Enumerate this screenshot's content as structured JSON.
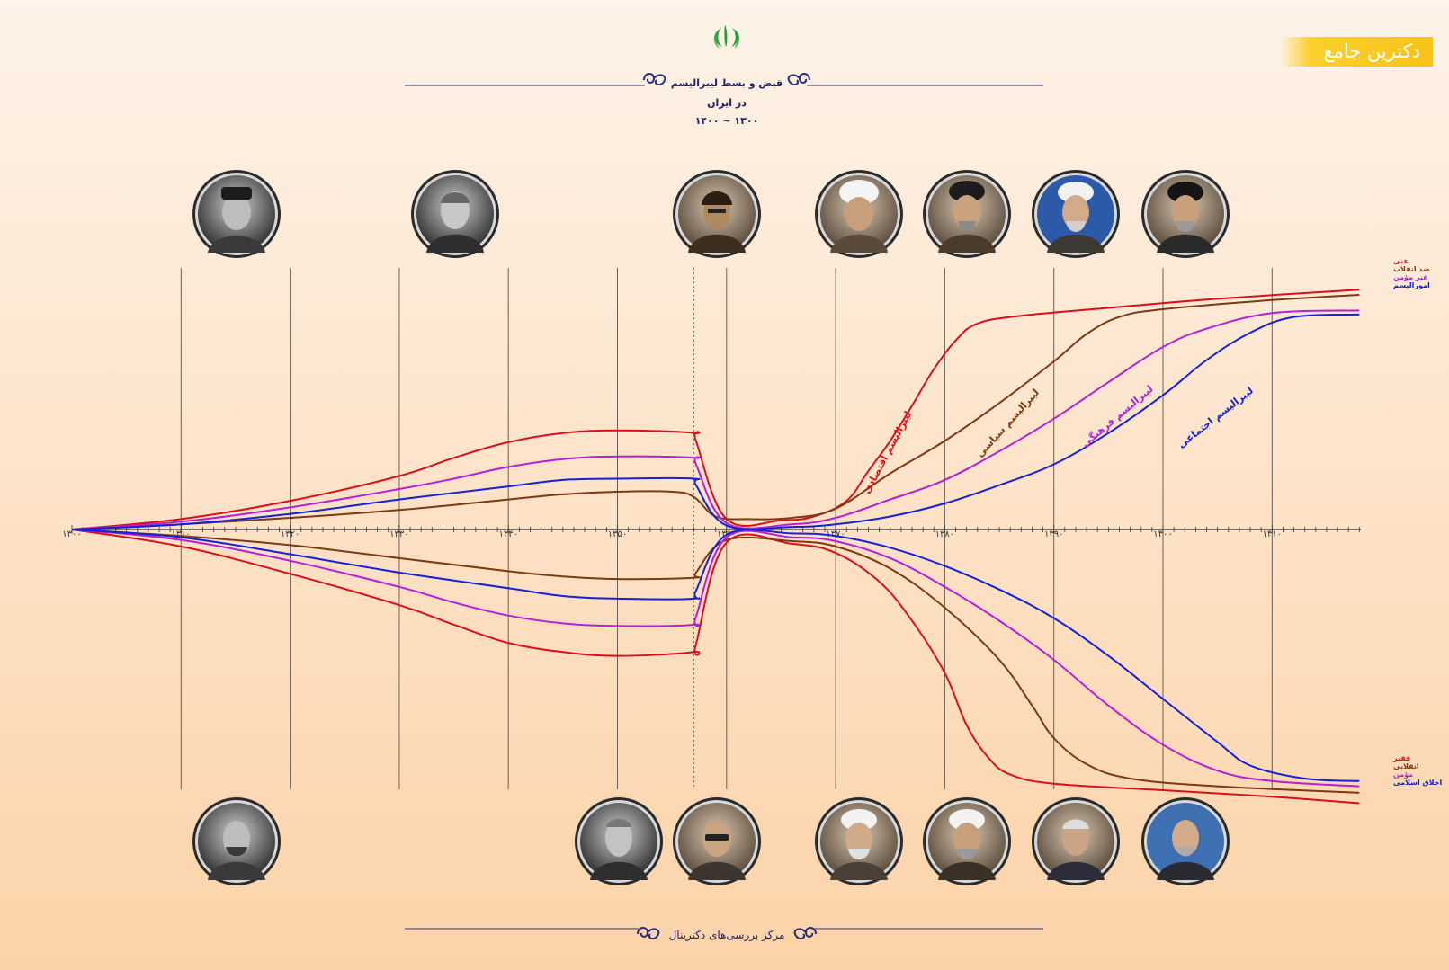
{
  "brand": {
    "label": "دکترین جامع"
  },
  "header": {
    "title": "قبض و بسط لیبرالیسم",
    "subtitle": "در ایران",
    "range": "۱۴۰۰ ~ ۱۳۰۰"
  },
  "footer": {
    "text": "مرکز بررسی‌های دکترینال"
  },
  "colors": {
    "red": "#d7111a",
    "brown": "#7b3a10",
    "magenta": "#b51fd8",
    "blue": "#1421d6",
    "title": "#1f2060",
    "emblem": "#21a33a"
  },
  "chart_data": {
    "type": "line",
    "title": "قبض و بسط لیبرالیسم",
    "xlabel": "",
    "ylabel": "",
    "xlim": [
      1300,
      1418
    ],
    "ylim": [
      -100,
      100
    ],
    "x_ticks": [
      1300,
      1310,
      1320,
      1330,
      1340,
      1350,
      1360,
      1370,
      1380,
      1390,
      1400,
      1410
    ],
    "x_tick_labels": [
      "۱۳۰۰",
      "۱۳۱۰",
      "۱۳۲۰",
      "۱۳۳۰",
      "۱۳۴۰",
      "۱۳۵۰",
      "۱۳۶۰",
      "۱۳۷۰",
      "۱۳۸۰",
      "۱۳۹۰",
      "۱۴۰۰",
      "۱۴۱۰"
    ],
    "grid_x": true,
    "revolution_marker_x": 1357,
    "upper_series": [
      {
        "name": "غنی",
        "curve_label": "لیبرالیسم اقتصادی",
        "color": "red",
        "label_at": [
          1375,
          58,
          -62
        ],
        "points": [
          [
            1300,
            0
          ],
          [
            1310,
            8
          ],
          [
            1320,
            22
          ],
          [
            1330,
            41
          ],
          [
            1335,
            55
          ],
          [
            1340,
            67
          ],
          [
            1345,
            74
          ],
          [
            1350,
            76
          ],
          [
            1357,
            74
          ],
          [
            1357.2,
            68
          ],
          [
            1360,
            8
          ],
          [
            1365,
            7
          ],
          [
            1368,
            10
          ],
          [
            1371,
            22
          ],
          [
            1373,
            45
          ],
          [
            1375,
            68
          ],
          [
            1377,
            95
          ],
          [
            1379,
            123
          ],
          [
            1381,
            145
          ],
          [
            1383,
            158
          ],
          [
            1387,
            164
          ],
          [
            1395,
            170
          ],
          [
            1405,
            177
          ],
          [
            1418,
            184
          ]
        ]
      },
      {
        "name": "ضد انقلاب",
        "curve_label": "لیبرالیسم سیاسی",
        "color": "brown",
        "label_at": [
          1386,
          80,
          -48
        ],
        "points": [
          [
            1300,
            0
          ],
          [
            1310,
            4
          ],
          [
            1320,
            9
          ],
          [
            1330,
            15
          ],
          [
            1340,
            23
          ],
          [
            1345,
            27
          ],
          [
            1350,
            29
          ],
          [
            1355,
            29
          ],
          [
            1357,
            25
          ],
          [
            1359,
            10
          ],
          [
            1362,
            8
          ],
          [
            1366,
            9
          ],
          [
            1370,
            16
          ],
          [
            1375,
            43
          ],
          [
            1380,
            68
          ],
          [
            1385,
            97
          ],
          [
            1390,
            129
          ],
          [
            1393,
            150
          ],
          [
            1396,
            163
          ],
          [
            1400,
            169
          ],
          [
            1410,
            176
          ],
          [
            1418,
            180
          ]
        ]
      },
      {
        "name": "غیر مؤمن",
        "curve_label": "لیبرالیسم فرهنگی",
        "color": "magenta",
        "label_at": [
          1396,
          85,
          -40
        ],
        "points": [
          [
            1300,
            0
          ],
          [
            1310,
            6
          ],
          [
            1320,
            17
          ],
          [
            1330,
            31
          ],
          [
            1335,
            39
          ],
          [
            1340,
            48
          ],
          [
            1345,
            54
          ],
          [
            1350,
            56
          ],
          [
            1357,
            55
          ],
          [
            1357.2,
            50
          ],
          [
            1360,
            5
          ],
          [
            1366,
            4
          ],
          [
            1370,
            9
          ],
          [
            1375,
            23
          ],
          [
            1380,
            38
          ],
          [
            1385,
            60
          ],
          [
            1390,
            85
          ],
          [
            1395,
            113
          ],
          [
            1400,
            140
          ],
          [
            1404,
            154
          ],
          [
            1410,
            166
          ],
          [
            1418,
            168
          ]
        ]
      },
      {
        "name": "امورالیسم",
        "curve_label": "لیبرالیسم اجتماعی",
        "color": "blue",
        "label_at": [
          1405,
          84,
          -38
        ],
        "points": [
          [
            1300,
            0
          ],
          [
            1310,
            4
          ],
          [
            1320,
            12
          ],
          [
            1330,
            23
          ],
          [
            1340,
            33
          ],
          [
            1345,
            38
          ],
          [
            1350,
            39
          ],
          [
            1357,
            39
          ],
          [
            1357.2,
            34
          ],
          [
            1360,
            3
          ],
          [
            1366,
            2
          ],
          [
            1370,
            4
          ],
          [
            1375,
            10
          ],
          [
            1380,
            20
          ],
          [
            1385,
            34
          ],
          [
            1390,
            50
          ],
          [
            1395,
            74
          ],
          [
            1400,
            103
          ],
          [
            1404,
            130
          ],
          [
            1408,
            151
          ],
          [
            1412,
            163
          ],
          [
            1418,
            165
          ]
        ]
      }
    ],
    "lower_series": [
      {
        "name": "فقیر",
        "color": "red",
        "points": [
          [
            1300,
            0
          ],
          [
            1310,
            -13
          ],
          [
            1320,
            -34
          ],
          [
            1330,
            -58
          ],
          [
            1335,
            -73
          ],
          [
            1340,
            -87
          ],
          [
            1345,
            -94
          ],
          [
            1350,
            -97
          ],
          [
            1357,
            -94
          ],
          [
            1357.2,
            -88
          ],
          [
            1360,
            -10
          ],
          [
            1366,
            -11
          ],
          [
            1370,
            -18
          ],
          [
            1374,
            -40
          ],
          [
            1377,
            -70
          ],
          [
            1380,
            -110
          ],
          [
            1382,
            -150
          ],
          [
            1384,
            -175
          ],
          [
            1386,
            -188
          ],
          [
            1390,
            -195
          ],
          [
            1400,
            -200
          ],
          [
            1410,
            -205
          ],
          [
            1418,
            -210
          ]
        ]
      },
      {
        "name": "انقلابی",
        "color": "brown",
        "points": [
          [
            1300,
            0
          ],
          [
            1310,
            -5
          ],
          [
            1320,
            -12
          ],
          [
            1330,
            -22
          ],
          [
            1340,
            -32
          ],
          [
            1345,
            -36
          ],
          [
            1350,
            -38
          ],
          [
            1357,
            -37
          ],
          [
            1357.2,
            -33
          ],
          [
            1360,
            -8
          ],
          [
            1366,
            -9
          ],
          [
            1370,
            -13
          ],
          [
            1375,
            -30
          ],
          [
            1380,
            -60
          ],
          [
            1385,
            -100
          ],
          [
            1388,
            -135
          ],
          [
            1390,
            -160
          ],
          [
            1393,
            -180
          ],
          [
            1397,
            -191
          ],
          [
            1405,
            -197
          ],
          [
            1418,
            -202
          ]
        ]
      },
      {
        "name": "مؤمن",
        "color": "magenta",
        "points": [
          [
            1300,
            0
          ],
          [
            1310,
            -8
          ],
          [
            1320,
            -24
          ],
          [
            1330,
            -44
          ],
          [
            1335,
            -56
          ],
          [
            1340,
            -66
          ],
          [
            1345,
            -72
          ],
          [
            1350,
            -74
          ],
          [
            1357,
            -73
          ],
          [
            1357.2,
            -67
          ],
          [
            1360,
            -6
          ],
          [
            1366,
            -6
          ],
          [
            1370,
            -9
          ],
          [
            1375,
            -22
          ],
          [
            1380,
            -44
          ],
          [
            1385,
            -70
          ],
          [
            1390,
            -100
          ],
          [
            1395,
            -135
          ],
          [
            1400,
            -165
          ],
          [
            1405,
            -185
          ],
          [
            1410,
            -193
          ],
          [
            1418,
            -197
          ]
        ]
      },
      {
        "name": "اخلاق اسلامی",
        "color": "blue",
        "points": [
          [
            1300,
            0
          ],
          [
            1310,
            -6
          ],
          [
            1320,
            -19
          ],
          [
            1330,
            -33
          ],
          [
            1340,
            -45
          ],
          [
            1345,
            -51
          ],
          [
            1350,
            -53
          ],
          [
            1357,
            -53
          ],
          [
            1357.2,
            -47
          ],
          [
            1360,
            -4
          ],
          [
            1366,
            -3
          ],
          [
            1370,
            -5
          ],
          [
            1375,
            -14
          ],
          [
            1380,
            -28
          ],
          [
            1385,
            -46
          ],
          [
            1390,
            -68
          ],
          [
            1395,
            -97
          ],
          [
            1400,
            -130
          ],
          [
            1405,
            -163
          ],
          [
            1408,
            -181
          ],
          [
            1413,
            -191
          ],
          [
            1418,
            -193
          ]
        ]
      }
    ]
  }
}
